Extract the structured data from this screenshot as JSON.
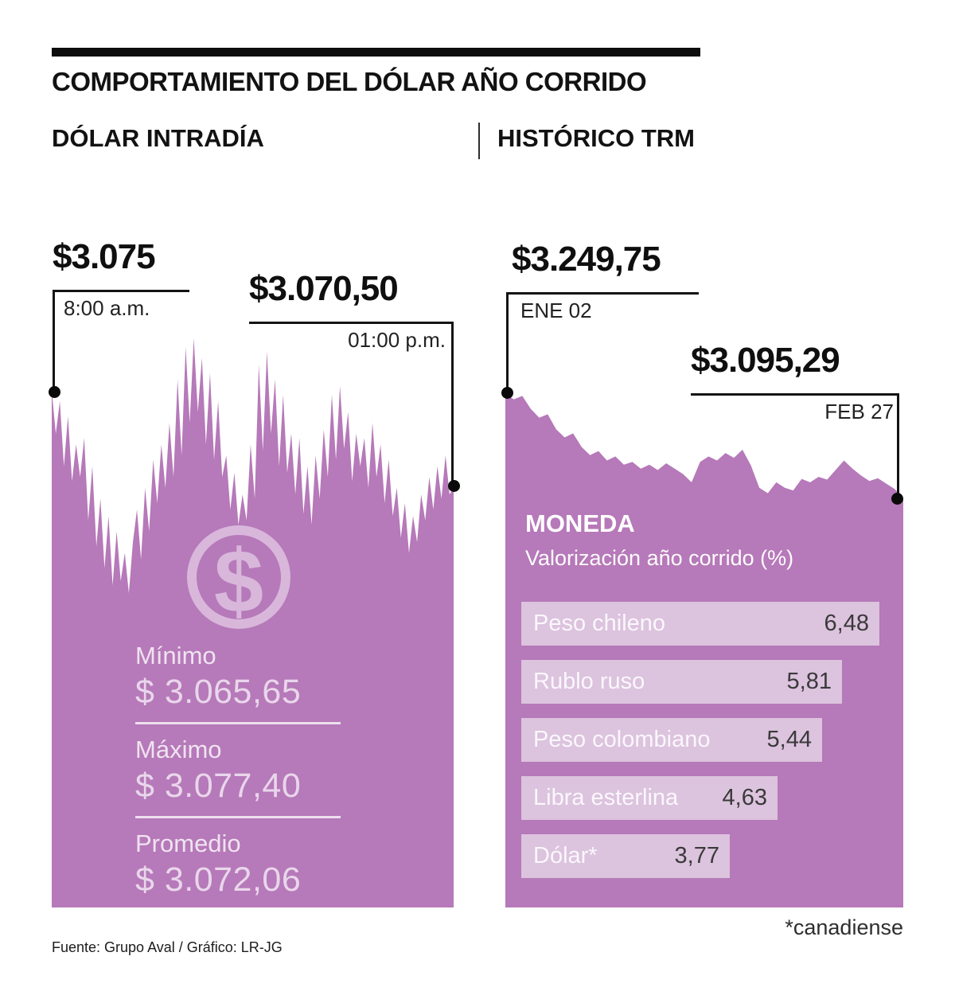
{
  "header": {
    "title": "COMPORTAMIENTO DEL DÓLAR AÑO CORRIDO"
  },
  "colors": {
    "area": "#b679b9",
    "bar_fill": "#dcc3de",
    "icon": "#d8b7db",
    "annotation": "#0a0a0a"
  },
  "intraday": {
    "title": "DÓLAR INTRADÍA",
    "icon_glyph": "$",
    "start": {
      "price": "$3.075",
      "time": "8:00 a.m."
    },
    "end": {
      "price": "$3.070,50",
      "time": "01:00 p.m."
    },
    "stats": [
      {
        "label": "Mínimo",
        "value": "$ 3.065,65"
      },
      {
        "label": "Máximo",
        "value": "$ 3.077,40"
      },
      {
        "label": "Promedio",
        "value": "$ 3.072,06"
      }
    ]
  },
  "trm": {
    "title": "HISTÓRICO TRM",
    "start": {
      "price": "$3.249,75",
      "date": "ENE 02"
    },
    "end": {
      "price": "$3.095,29",
      "date": "FEB 27"
    },
    "table": {
      "title": "MONEDA",
      "subtitle": "Valorización año corrido (%)",
      "rows": [
        {
          "label": "Peso chileno",
          "value": "6,48"
        },
        {
          "label": "Rublo ruso",
          "value": "5,81"
        },
        {
          "label": "Peso colombiano",
          "value": "5,44"
        },
        {
          "label": "Libra esterlina",
          "value": "4,63"
        },
        {
          "label": "Dólar*",
          "value": "3,77"
        }
      ]
    },
    "footnote": "*canadiense"
  },
  "footer": {
    "source": "Fuente: Grupo Aval / Gráfico: LR-JG"
  },
  "chart_data": [
    {
      "type": "area",
      "title": "DÓLAR INTRADÍA",
      "x_start": "8:00 a.m.",
      "x_end": "01:00 p.m.",
      "ylim": [
        3065.65,
        3077.4
      ],
      "start_value": 3075.0,
      "end_value": 3070.5,
      "min": 3065.65,
      "max": 3077.4,
      "avg": 3072.06,
      "values": [
        3075.0,
        3073.0,
        3074.5,
        3071.5,
        3073.8,
        3070.8,
        3072.5,
        3071.0,
        3072.8,
        3069.0,
        3071.5,
        3067.8,
        3070.0,
        3066.8,
        3069.2,
        3066.0,
        3068.5,
        3066.2,
        3067.5,
        3065.65,
        3068.0,
        3069.5,
        3067.2,
        3070.5,
        3068.5,
        3071.8,
        3069.8,
        3072.5,
        3070.5,
        3073.5,
        3071.0,
        3075.5,
        3072.0,
        3077.0,
        3073.5,
        3077.4,
        3074.0,
        3076.5,
        3072.5,
        3075.8,
        3071.8,
        3074.5,
        3071.0,
        3072.0,
        3069.5,
        3071.2,
        3068.8,
        3070.2,
        3069.0,
        3072.5,
        3070.0,
        3076.2,
        3072.2,
        3076.8,
        3073.0,
        3075.5,
        3071.5,
        3074.8,
        3071.2,
        3073.0,
        3070.2,
        3072.8,
        3069.3,
        3071.5,
        3068.8,
        3072.0,
        3070.0,
        3073.2,
        3071.0,
        3074.8,
        3071.8,
        3075.2,
        3072.3,
        3074.0,
        3070.8,
        3073.0,
        3071.5,
        3072.8,
        3070.5,
        3073.5,
        3071.0,
        3072.5,
        3069.8,
        3071.8,
        3069.2,
        3070.5,
        3068.2,
        3069.8,
        3067.5,
        3069.2,
        3068.0,
        3070.2,
        3069.0,
        3071.0,
        3069.5,
        3071.5,
        3070.0,
        3072.0,
        3070.2,
        3070.5
      ]
    },
    {
      "type": "area",
      "title": "HISTÓRICO TRM",
      "x_start": "ENE 02",
      "x_end": "FEB 27",
      "ylim": [
        3095.29,
        3249.75
      ],
      "start_value": 3249.75,
      "end_value": 3095.29,
      "values": [
        3249.75,
        3242,
        3247,
        3228,
        3215,
        3220,
        3198,
        3186,
        3192,
        3172,
        3160,
        3166,
        3152,
        3158,
        3146,
        3150,
        3140,
        3146,
        3138,
        3148,
        3140,
        3132,
        3120,
        3150,
        3158,
        3152,
        3163,
        3156,
        3168,
        3145,
        3112,
        3104,
        3120,
        3112,
        3108,
        3125,
        3120,
        3128,
        3124,
        3138,
        3152,
        3140,
        3130,
        3122,
        3126,
        3118,
        3110,
        3095.29
      ]
    },
    {
      "type": "bar",
      "title": "MONEDA — Valorización año corrido (%)",
      "orientation": "horizontal",
      "unit": "%",
      "categories": [
        "Peso chileno",
        "Rublo ruso",
        "Peso colombiano",
        "Libra esterlina",
        "Dólar* (canadiense)"
      ],
      "values": [
        6.48,
        5.81,
        5.44,
        4.63,
        3.77
      ]
    }
  ]
}
